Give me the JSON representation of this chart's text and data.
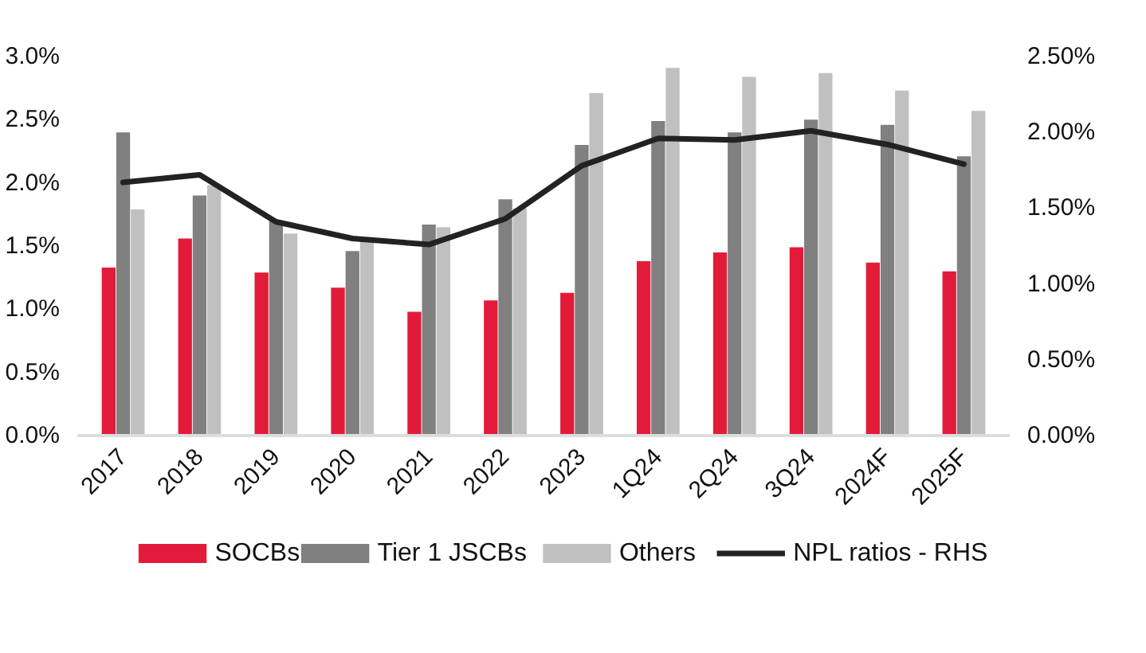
{
  "chart_data": {
    "type": "bar",
    "categories": [
      "2017",
      "2018",
      "2019",
      "2020",
      "2021",
      "2022",
      "2023",
      "1Q24",
      "2Q24",
      "3Q24",
      "2024F",
      "2025F"
    ],
    "series": [
      {
        "name": "SOCBs",
        "color": "#e31b3a",
        "values": [
          1.33,
          1.56,
          1.29,
          1.17,
          0.98,
          1.07,
          1.13,
          1.38,
          1.45,
          1.49,
          1.37,
          1.3
        ]
      },
      {
        "name": "Tier 1 JSCBs",
        "color": "#808080",
        "values": [
          2.4,
          1.9,
          1.7,
          1.46,
          1.67,
          1.87,
          2.3,
          2.49,
          2.4,
          2.5,
          2.46,
          2.21
        ]
      },
      {
        "name": "Others",
        "color": "#c0c0c0",
        "values": [
          1.79,
          1.98,
          1.6,
          1.55,
          1.65,
          1.8,
          2.71,
          2.91,
          2.84,
          2.87,
          2.73,
          2.57
        ]
      },
      {
        "name": "NPL ratios - RHS",
        "type": "line",
        "axis": "y2",
        "color": "#222222",
        "values": [
          1.67,
          1.72,
          1.41,
          1.3,
          1.26,
          1.43,
          1.78,
          1.96,
          1.95,
          2.01,
          1.92,
          1.79
        ]
      }
    ],
    "ylim": [
      0,
      3.0
    ],
    "yticks": [
      {
        "value": 0,
        "label": "0.0%"
      },
      {
        "value": 0.5,
        "label": "0.5%"
      },
      {
        "value": 1.0,
        "label": "1.0%"
      },
      {
        "value": 1.5,
        "label": "1.5%"
      },
      {
        "value": 2.0,
        "label": "2.0%"
      },
      {
        "value": 2.5,
        "label": "2.5%"
      },
      {
        "value": 3.0,
        "label": "3.0%"
      }
    ],
    "y2lim": [
      0,
      2.5
    ],
    "y2ticks": [
      {
        "value": 0,
        "label": "0.00%"
      },
      {
        "value": 0.5,
        "label": "0.50%"
      },
      {
        "value": 1.0,
        "label": "1.00%"
      },
      {
        "value": 1.5,
        "label": "1.50%"
      },
      {
        "value": 2.0,
        "label": "2.00%"
      },
      {
        "value": 2.5,
        "label": "2.50%"
      }
    ],
    "legend": "bottom",
    "grid": false,
    "line_style": "solid"
  }
}
